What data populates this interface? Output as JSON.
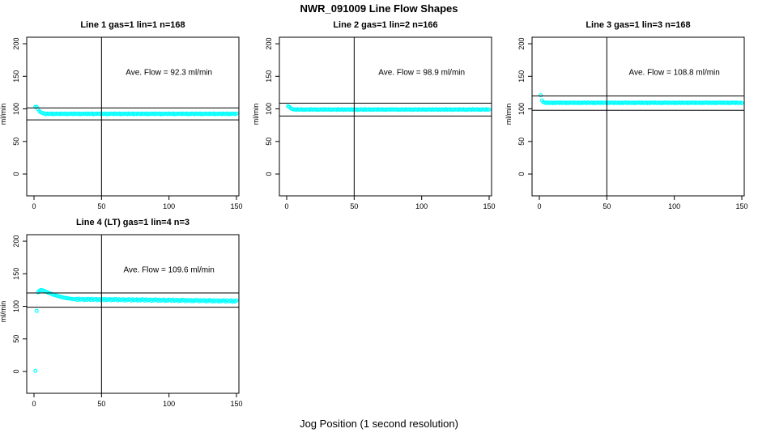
{
  "figure": {
    "title": "NWR_091009  Line Flow Shapes",
    "xlabel": "Jog Position (1 second resolution)",
    "background": "#FFFFFF",
    "point_color": "#00FFFF",
    "line_color": "#000000"
  },
  "chart_data": [
    {
      "type": "scatter",
      "title": "Line 1 gas=1 lin=1 n=168",
      "annotation": "Ave. Flow =  92.3  ml/min",
      "ave_flow_ml_min": 92.3,
      "n": 168,
      "ylabel": "ml/min",
      "xticks": [
        0,
        50,
        100,
        150
      ],
      "yticks": [
        0,
        50,
        100,
        150,
        200
      ],
      "xlim": [
        -5.4,
        151.8
      ],
      "ylim": [
        -33.5,
        210
      ],
      "vline_x": 50,
      "hlines_y": [
        101.5,
        83.1
      ],
      "x_start": 1,
      "x_step": 1,
      "y": [
        103.2,
        103.0,
        99.5,
        96.5,
        94.8,
        93.8,
        93.2,
        92.6,
        91.9,
        92.9,
        92.1,
        92.3,
        92.8,
        91.7,
        92.5,
        92.0,
        92.7,
        92.6,
        91.9,
        92.9,
        92.1,
        92.3,
        92.8,
        91.7,
        92.5,
        92.0,
        92.7,
        92.6,
        91.9,
        92.9,
        92.1,
        92.3,
        92.8,
        91.7,
        92.5,
        92.0,
        92.7,
        92.6,
        91.9,
        92.9,
        92.1,
        92.3,
        92.8,
        91.7,
        92.5,
        92.0,
        92.7,
        92.6,
        91.9,
        92.9,
        92.1,
        92.3,
        92.8,
        91.7,
        92.5,
        92.0,
        92.7,
        92.6,
        91.9,
        92.9,
        92.1,
        92.3,
        92.8,
        91.7,
        92.5,
        92.0,
        92.7,
        92.6,
        91.9,
        92.9,
        92.1,
        92.3,
        92.8,
        91.7,
        92.5,
        92.0,
        92.7,
        92.6,
        91.9,
        92.9,
        92.1,
        92.3,
        92.8,
        91.7,
        92.5,
        92.0,
        92.7,
        92.6,
        91.9,
        92.9,
        92.1,
        92.3,
        92.8,
        91.7,
        92.5,
        92.0,
        92.7,
        92.6,
        91.9,
        92.9,
        92.1,
        92.3,
        92.8,
        91.7,
        92.5,
        92.0,
        92.7,
        92.6,
        91.9,
        92.9,
        92.1,
        92.3,
        92.8,
        91.7,
        92.5,
        92.0,
        92.7,
        92.6,
        91.9,
        92.9,
        92.1,
        92.3,
        92.8,
        91.7,
        92.5,
        92.0,
        92.7,
        92.6,
        91.9,
        92.9,
        92.1,
        92.3,
        92.8,
        91.7,
        92.5,
        92.0,
        92.7,
        92.6,
        91.9,
        92.9,
        92.1,
        92.3,
        92.8,
        91.7,
        92.5,
        92.0,
        92.7,
        92.6,
        91.9,
        92.9
      ]
    },
    {
      "type": "scatter",
      "title": "Line 2 gas=1 lin=2 n=166",
      "annotation": "Ave. Flow =  98.9  ml/min",
      "ave_flow_ml_min": 98.9,
      "n": 166,
      "ylabel": "ml/min",
      "xticks": [
        0,
        50,
        100,
        150
      ],
      "yticks": [
        0,
        50,
        100,
        150,
        200
      ],
      "xlim": [
        -5.4,
        151.8
      ],
      "ylim": [
        -33.5,
        210
      ],
      "vline_x": 50,
      "hlines_y": [
        108.8,
        89.0
      ],
      "x_start": 1,
      "x_step": 1,
      "y": [
        104.0,
        103.2,
        101.0,
        99.8,
        99.3,
        99.2,
        98.5,
        99.5,
        98.7,
        98.9,
        99.4,
        98.3,
        99.1,
        98.6,
        99.3,
        99.2,
        98.5,
        99.5,
        98.7,
        98.9,
        99.4,
        98.3,
        99.1,
        98.6,
        99.3,
        99.2,
        98.5,
        99.5,
        98.7,
        98.9,
        99.4,
        98.3,
        99.1,
        98.6,
        99.3,
        99.2,
        98.5,
        99.5,
        98.7,
        98.9,
        99.4,
        98.3,
        99.1,
        98.6,
        99.3,
        99.2,
        98.5,
        99.5,
        98.7,
        98.9,
        99.4,
        98.3,
        99.1,
        98.6,
        99.3,
        99.2,
        98.5,
        99.5,
        98.7,
        98.9,
        99.4,
        98.3,
        99.1,
        98.6,
        99.3,
        99.2,
        98.5,
        99.5,
        98.7,
        98.9,
        99.4,
        98.3,
        99.1,
        98.6,
        99.3,
        99.2,
        98.5,
        99.5,
        98.7,
        98.9,
        99.4,
        98.3,
        99.1,
        98.6,
        99.3,
        99.2,
        98.5,
        99.5,
        98.7,
        98.9,
        99.4,
        98.3,
        99.1,
        98.6,
        99.3,
        99.2,
        98.5,
        99.5,
        98.7,
        98.9,
        99.4,
        98.3,
        99.1,
        98.6,
        99.3,
        99.2,
        98.5,
        99.5,
        98.7,
        98.9,
        99.4,
        98.3,
        99.1,
        98.6,
        99.3,
        99.2,
        98.5,
        99.5,
        98.7,
        98.9,
        99.4,
        98.3,
        99.1,
        98.6,
        99.3,
        99.2,
        98.5,
        99.5,
        98.7,
        98.9,
        99.4,
        98.3,
        99.1,
        98.6,
        99.3,
        99.2,
        98.5,
        99.5,
        98.7,
        98.9,
        99.4,
        98.3,
        99.1,
        98.6,
        99.3,
        99.2,
        98.5,
        99.5,
        98.7,
        98.9
      ]
    },
    {
      "type": "scatter",
      "title": "Line 3 gas=1 lin=3 n=168",
      "annotation": "Ave. Flow =  108.8  ml/min",
      "ave_flow_ml_min": 108.8,
      "n": 168,
      "ylabel": "ml/min",
      "xticks": [
        0,
        50,
        100,
        150
      ],
      "yticks": [
        0,
        50,
        100,
        150,
        200
      ],
      "xlim": [
        -5.4,
        151.8
      ],
      "ylim": [
        -33.5,
        210
      ],
      "vline_x": 50,
      "hlines_y": [
        119.7,
        97.9
      ],
      "x_start": 1,
      "x_step": 1,
      "y": [
        121.0,
        113.0,
        110.2,
        109.6,
        108.9,
        109.9,
        109.1,
        109.3,
        109.8,
        108.7,
        109.5,
        109.0,
        109.7,
        109.6,
        108.9,
        109.9,
        109.1,
        109.3,
        109.8,
        108.7,
        109.5,
        109.0,
        109.7,
        109.6,
        108.9,
        109.9,
        109.1,
        109.3,
        109.8,
        108.7,
        109.5,
        109.0,
        109.7,
        109.6,
        108.9,
        109.9,
        109.1,
        109.3,
        109.8,
        108.7,
        109.5,
        109.0,
        109.7,
        109.6,
        108.9,
        109.9,
        109.1,
        109.3,
        109.8,
        108.7,
        109.5,
        109.0,
        109.7,
        109.6,
        108.9,
        109.9,
        109.1,
        109.3,
        109.8,
        108.7,
        109.5,
        109.0,
        109.7,
        109.6,
        108.9,
        109.9,
        109.1,
        109.3,
        109.8,
        108.7,
        109.5,
        109.0,
        109.7,
        109.6,
        108.9,
        109.9,
        109.1,
        109.3,
        109.8,
        108.7,
        109.5,
        109.0,
        109.7,
        109.6,
        108.9,
        109.9,
        109.1,
        109.3,
        109.8,
        108.7,
        109.5,
        109.0,
        109.7,
        109.6,
        108.9,
        109.9,
        109.1,
        109.3,
        109.8,
        108.7,
        109.5,
        109.0,
        109.7,
        109.6,
        108.9,
        109.9,
        109.1,
        109.3,
        109.8,
        108.7,
        109.5,
        109.0,
        109.7,
        109.6,
        108.9,
        109.9,
        109.1,
        109.3,
        109.8,
        108.7,
        109.5,
        109.0,
        109.7,
        109.6,
        108.9,
        109.9,
        109.1,
        109.3,
        109.8,
        108.7,
        109.5,
        109.0,
        109.7,
        109.6,
        108.9,
        109.9,
        109.1,
        109.3,
        109.8,
        108.7,
        109.5,
        109.0,
        109.7,
        109.6,
        108.9,
        109.9,
        109.1,
        109.3,
        109.8,
        108.7
      ]
    },
    {
      "type": "scatter",
      "title": "Line 4 (LT) gas=1 lin=4 n=3",
      "annotation": "Ave. Flow =  109.6  ml/min",
      "ave_flow_ml_min": 109.6,
      "n": 3,
      "ylabel": "ml/min",
      "xticks": [
        0,
        50,
        100,
        150
      ],
      "yticks": [
        0,
        50,
        100,
        150,
        200
      ],
      "xlim": [
        -5.4,
        151.8
      ],
      "ylim": [
        -33.5,
        210
      ],
      "vline_x": 50,
      "hlines_y": [
        120.6,
        98.6
      ],
      "x_start": 1,
      "x_step": 1,
      "y": [
        1.0,
        93.0,
        121.5,
        124.0,
        125.0,
        124.8,
        124.2,
        123.3,
        122.4,
        121.5,
        120.6,
        119.8,
        119.0,
        118.2,
        117.5,
        116.8,
        116.2,
        115.6,
        115.0,
        114.5,
        114.0,
        113.5,
        113.1,
        112.7,
        112.3,
        112.0,
        111.7,
        111.4,
        111.1,
        110.9,
        111.6,
        109.9,
        111.9,
        110.2,
        110.9,
        111.6,
        109.6,
        111.1,
        109.9,
        111.6,
        111.3,
        109.6,
        111.6,
        110.0,
        110.7,
        111.4,
        109.4,
        110.9,
        109.7,
        111.4,
        111.1,
        109.4,
        111.4,
        109.8,
        110.5,
        111.2,
        109.2,
        110.7,
        109.5,
        111.2,
        110.8,
        109.1,
        111.1,
        109.5,
        110.2,
        110.9,
        108.9,
        110.5,
        109.3,
        111.0,
        110.6,
        108.9,
        110.9,
        109.3,
        110.0,
        110.7,
        108.7,
        110.3,
        109.1,
        110.8,
        110.4,
        108.7,
        110.7,
        109.1,
        109.8,
        110.5,
        108.5,
        110.1,
        108.9,
        110.6,
        110.1,
        108.4,
        110.4,
        108.8,
        109.5,
        110.2,
        108.2,
        109.8,
        108.6,
        110.3,
        109.9,
        108.2,
        110.2,
        108.6,
        109.3,
        110.0,
        108.0,
        109.6,
        108.4,
        110.1,
        109.6,
        107.9,
        109.9,
        108.3,
        109.0,
        109.7,
        107.7,
        109.3,
        108.1,
        109.8,
        109.4,
        107.7,
        109.7,
        108.1,
        108.8,
        109.5,
        107.5,
        109.1,
        107.9,
        109.6,
        109.1,
        107.4,
        109.4,
        107.8,
        108.5,
        109.2,
        107.2,
        108.8,
        107.6,
        109.3,
        108.9,
        107.2,
        109.2,
        107.6,
        108.3,
        109.0,
        107.0,
        108.6,
        107.4,
        109.1
      ]
    }
  ]
}
